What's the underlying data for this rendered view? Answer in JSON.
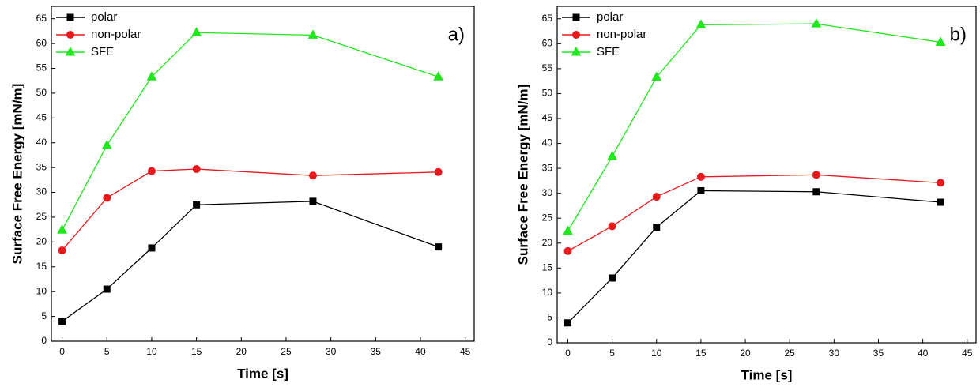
{
  "chart_data": [
    {
      "type": "line",
      "annotation": "a)",
      "xlabel": "Time [s]",
      "ylabel": "Surface Free Energy [mN/m]",
      "x": [
        0,
        5,
        10,
        15,
        28,
        42
      ],
      "series": [
        {
          "name": "polar",
          "color": "#000000",
          "marker": "square",
          "values": [
            4,
            10.5,
            18.8,
            27.5,
            28.2,
            19
          ]
        },
        {
          "name": "non-polar",
          "color": "#e8191c",
          "marker": "circle",
          "values": [
            18.3,
            28.9,
            34.3,
            34.7,
            33.4,
            34.1
          ]
        },
        {
          "name": "SFE",
          "color": "#1fe81c",
          "marker": "triangle",
          "values": [
            22.4,
            39.5,
            53.3,
            62.2,
            61.7,
            53.3
          ]
        }
      ],
      "xlim": [
        -1.2,
        46
      ],
      "xticks": [
        0,
        5,
        10,
        15,
        20,
        25,
        30,
        35,
        40,
        45
      ],
      "ylim": [
        0,
        67.5
      ],
      "yticks": [
        0,
        5,
        10,
        15,
        20,
        25,
        30,
        35,
        40,
        45,
        50,
        55,
        60,
        65
      ],
      "legend": "top-left"
    },
    {
      "type": "line",
      "annotation": "b)",
      "xlabel": "Time [s]",
      "ylabel": "Surface Free Energy [mN/m]",
      "x": [
        0,
        5,
        10,
        15,
        28,
        42
      ],
      "series": [
        {
          "name": "polar",
          "color": "#000000",
          "marker": "square",
          "values": [
            4,
            13,
            23.2,
            30.5,
            30.3,
            28.2
          ]
        },
        {
          "name": "non-polar",
          "color": "#e8191c",
          "marker": "circle",
          "values": [
            18.4,
            23.4,
            29.3,
            33.3,
            33.7,
            32.1
          ]
        },
        {
          "name": "SFE",
          "color": "#1fe81c",
          "marker": "triangle",
          "values": [
            22.4,
            37.4,
            53.3,
            63.8,
            64,
            60.3
          ]
        }
      ],
      "xlim": [
        -1.2,
        46
      ],
      "xticks": [
        0,
        5,
        10,
        15,
        20,
        25,
        30,
        35,
        40,
        45
      ],
      "ylim": [
        0,
        67.5
      ],
      "yticks": [
        0,
        5,
        10,
        15,
        20,
        25,
        30,
        35,
        40,
        45,
        50,
        55,
        60,
        65
      ],
      "legend": "top-left"
    }
  ]
}
